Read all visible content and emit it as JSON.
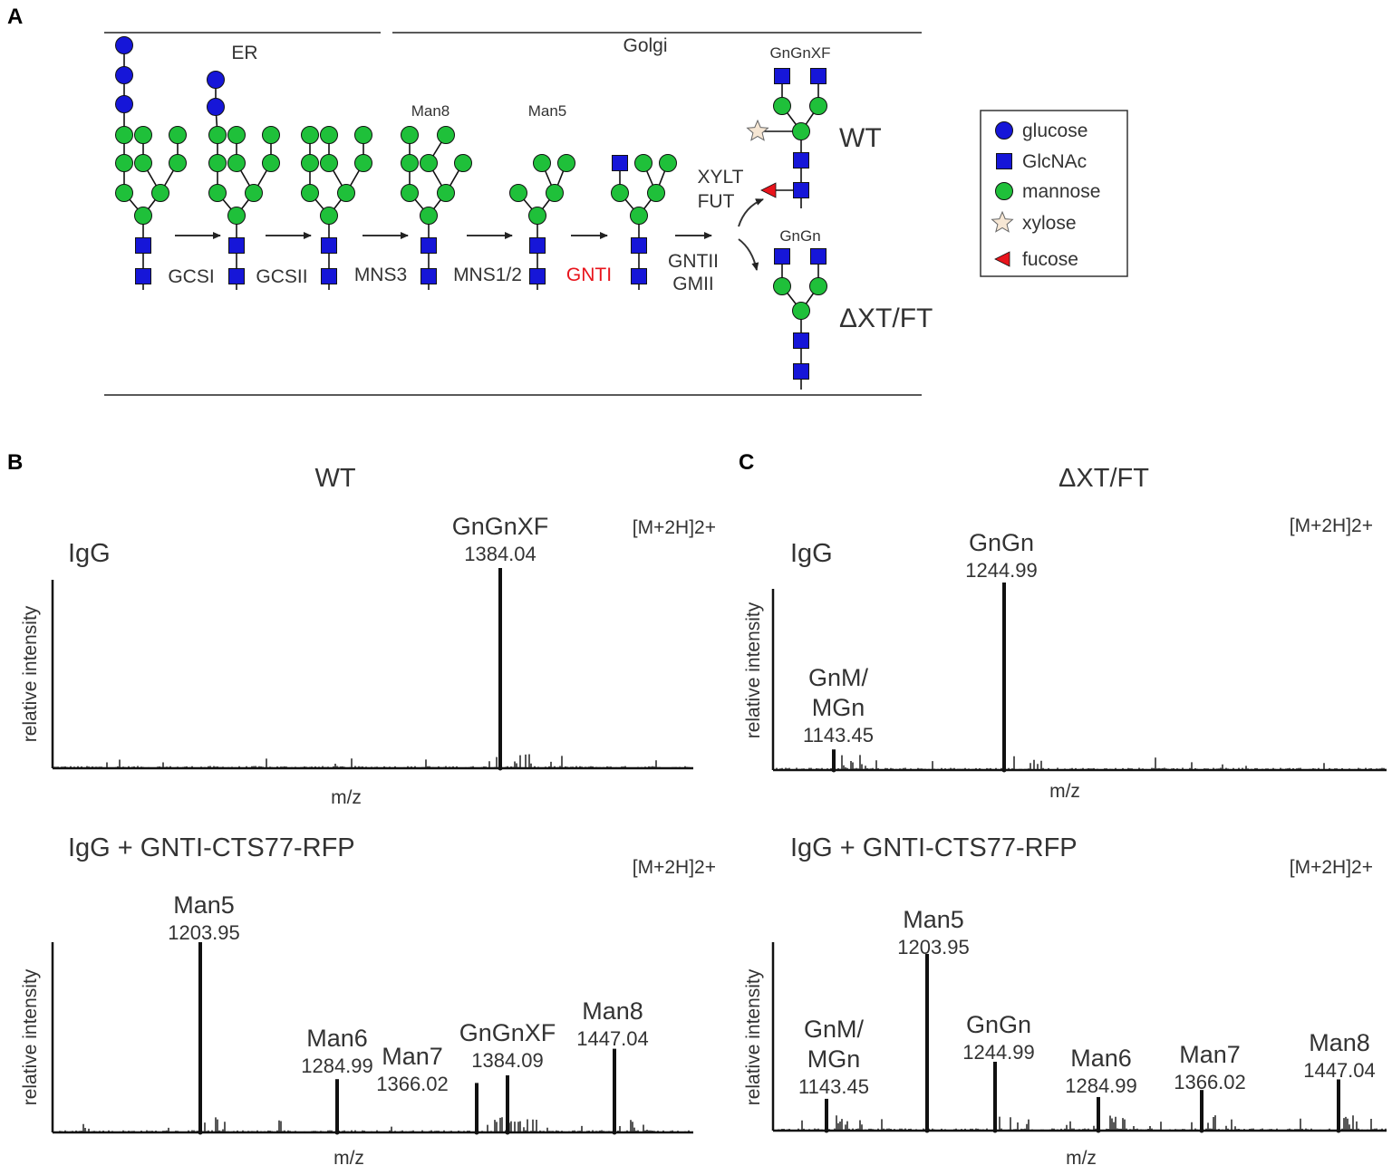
{
  "panel_a": {
    "label": "A",
    "compartments": [
      "ER",
      "Golgi"
    ],
    "enzymes": [
      "GCSI",
      "GCSII",
      "MNS3",
      "MNS1/2",
      "GNTI",
      "GNTII",
      "GMII",
      "XYLT",
      "FUT"
    ],
    "structures": [
      "Man8",
      "Man5",
      "GnGnXF",
      "GnGn"
    ],
    "lines": [
      "WT",
      "ΔXT/FT"
    ],
    "legend": [
      "glucose",
      "GlcNAc",
      "mannose",
      "xylose",
      "fucose"
    ]
  },
  "panel_b": {
    "label": "B",
    "title": "WT",
    "spectra": [
      {
        "sample": "IgG",
        "ion": "[M+2H]2+",
        "ylabel": "relative intensity",
        "xlabel": "m/z",
        "peaks": [
          {
            "name": "GnGnXF",
            "mz": 1384.04,
            "intensity": 100
          }
        ]
      },
      {
        "sample": "IgG + GNTI-CTS77-RFP",
        "ion": "[M+2H]2+",
        "ylabel": "relative intensity",
        "xlabel": "m/z",
        "peaks": [
          {
            "name": "Man5",
            "mz": 1203.95,
            "intensity": 100
          },
          {
            "name": "Man6",
            "mz": 1284.99,
            "intensity": 28
          },
          {
            "name": "Man7",
            "mz": 1366.02,
            "intensity": 26
          },
          {
            "name": "GnGnXF",
            "mz": 1384.09,
            "intensity": 30
          },
          {
            "name": "Man8",
            "mz": 1447.04,
            "intensity": 44
          }
        ]
      }
    ]
  },
  "panel_c": {
    "label": "C",
    "title": "ΔXT/FT",
    "spectra": [
      {
        "sample": "IgG",
        "ion": "[M+2H]2+",
        "ylabel": "relative intensity",
        "xlabel": "m/z",
        "peaks": [
          {
            "name": "GnGn",
            "mz": 1244.99,
            "intensity": 100
          },
          {
            "name": [
              "GnM/",
              "MGn"
            ],
            "mz": 1143.45,
            "intensity": 11
          }
        ]
      },
      {
        "sample": "IgG + GNTI-CTS77-RFP",
        "ion": "[M+2H]2+",
        "ylabel": "relative intensity",
        "xlabel": "m/z",
        "peaks": [
          {
            "name": [
              "GnM/",
              "MGn"
            ],
            "mz": 1143.45,
            "intensity": 18
          },
          {
            "name": "Man5",
            "mz": 1203.95,
            "intensity": 100
          },
          {
            "name": "GnGn",
            "mz": 1244.99,
            "intensity": 39
          },
          {
            "name": "Man6",
            "mz": 1284.99,
            "intensity": 19
          },
          {
            "name": "Man7",
            "mz": 1366.02,
            "intensity": 23
          },
          {
            "name": "Man8",
            "mz": 1447.04,
            "intensity": 29
          }
        ]
      }
    ]
  }
}
